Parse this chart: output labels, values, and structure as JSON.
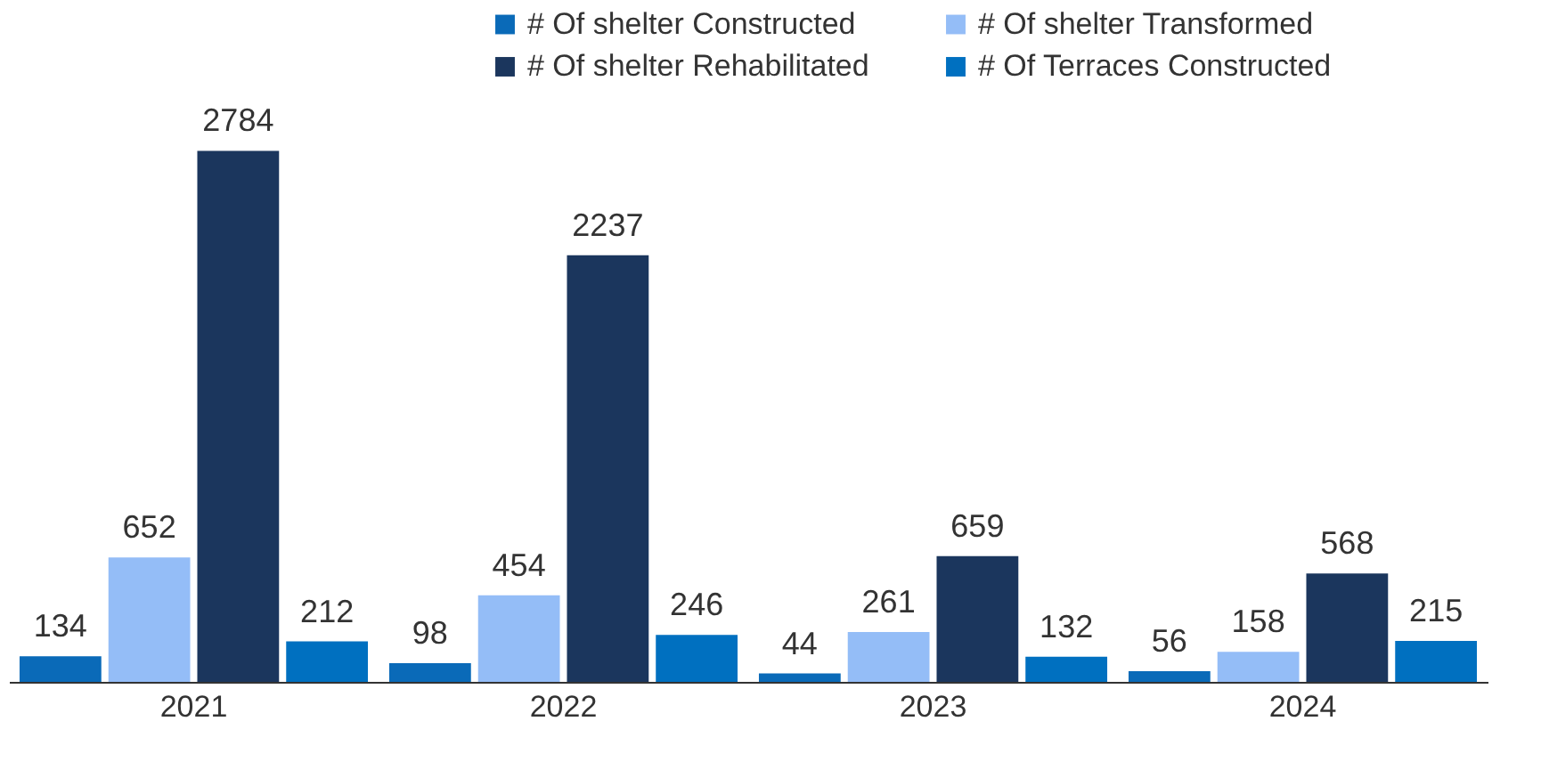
{
  "chart_data": {
    "type": "bar",
    "categories": [
      "2021",
      "2022",
      "2023",
      "2024"
    ],
    "series": [
      {
        "name": "# Of shelter Constructed",
        "color": "#0a6ab8",
        "values": [
          134,
          98,
          44,
          56
        ]
      },
      {
        "name": "# Of shelter Transformed",
        "color": "#94bdf7",
        "values": [
          652,
          454,
          261,
          158
        ]
      },
      {
        "name": "# Of shelter Rehabilitated",
        "color": "#1b365d",
        "values": [
          2784,
          2237,
          659,
          568
        ]
      },
      {
        "name": "# Of Terraces Constructed",
        "color": "#0070c0",
        "values": [
          212,
          246,
          132,
          215
        ]
      }
    ],
    "data_labels": true,
    "legend": "top right",
    "grid": false
  }
}
